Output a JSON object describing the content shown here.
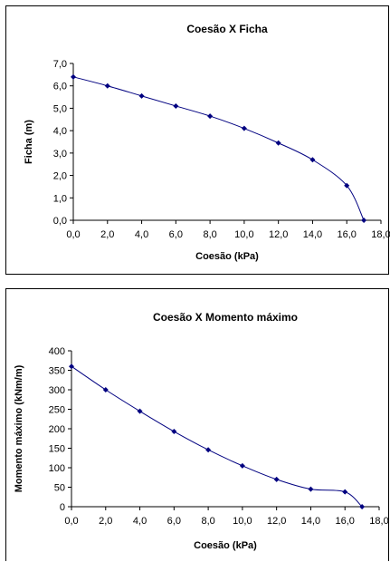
{
  "chart_data": [
    {
      "type": "line",
      "title": "Coesão X Ficha",
      "xlabel": "Coesão (kPa)",
      "ylabel": "Ficha (m)",
      "xlim": [
        0,
        18
      ],
      "ylim": [
        0,
        7
      ],
      "x_ticks": [
        0,
        2,
        4,
        6,
        8,
        10,
        12,
        14,
        16,
        18
      ],
      "y_ticks": [
        0,
        1,
        2,
        3,
        4,
        5,
        6,
        7
      ],
      "x_tick_labels": [
        "0,0",
        "2,0",
        "4,0",
        "6,0",
        "8,0",
        "10,0",
        "12,0",
        "14,0",
        "16,0",
        "18,0"
      ],
      "y_tick_labels": [
        "0,0",
        "1,0",
        "2,0",
        "3,0",
        "4,0",
        "5,0",
        "6,0",
        "7,0"
      ],
      "grid": false,
      "marker": "diamond",
      "line_color": "#000080",
      "series": [
        {
          "x": [
            0,
            2,
            4,
            6,
            8,
            10,
            12,
            14,
            16,
            17
          ],
          "y": [
            6.4,
            6.0,
            5.55,
            5.1,
            4.65,
            4.1,
            3.45,
            2.7,
            1.55,
            0.0
          ]
        }
      ]
    },
    {
      "type": "line",
      "title": "Coesão X Momento máximo",
      "xlabel": "Coesão (kPa)",
      "ylabel": "Momento máximo (kNm/m)",
      "xlim": [
        0,
        18
      ],
      "ylim": [
        0,
        400
      ],
      "x_ticks": [
        0,
        2,
        4,
        6,
        8,
        10,
        12,
        14,
        16,
        18
      ],
      "y_ticks": [
        0,
        50,
        100,
        150,
        200,
        250,
        300,
        350,
        400
      ],
      "x_tick_labels": [
        "0,0",
        "2,0",
        "4,0",
        "6,0",
        "8,0",
        "10,0",
        "12,0",
        "14,0",
        "16,0",
        "18,0"
      ],
      "y_tick_labels": [
        "0",
        "50",
        "100",
        "150",
        "200",
        "250",
        "300",
        "350",
        "400"
      ],
      "grid": false,
      "marker": "diamond",
      "line_color": "#000080",
      "series": [
        {
          "x": [
            0,
            2,
            4,
            6,
            8,
            10,
            12,
            14,
            16,
            17
          ],
          "y": [
            360,
            300,
            245,
            193,
            146,
            105,
            70,
            45,
            38,
            0
          ]
        }
      ]
    }
  ]
}
